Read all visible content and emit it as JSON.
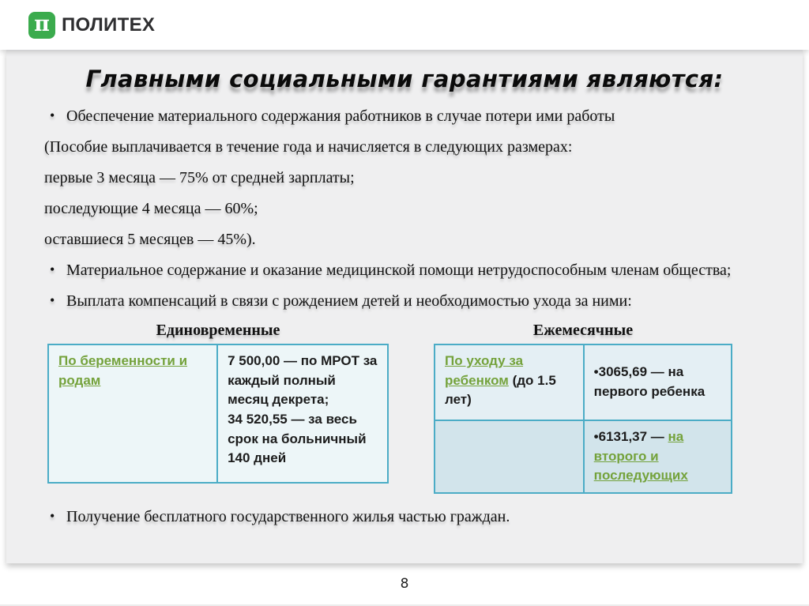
{
  "header": {
    "logo_icon": "π",
    "logo_text": "ПОЛИТЕХ"
  },
  "slide": {
    "title": "Главными социальными гарантиями  являются:",
    "bullets": [
      {
        "text": "Обеспечение материального содержания работников в случае потери ими работы"
      },
      {
        "text": "(Пособие выплачивается в течение года и начисляется в следующих размерах:"
      },
      {
        "text": "первые 3 месяца — 75% от средней зарплаты;"
      },
      {
        "text": "последующие 4 месяца — 60%;"
      },
      {
        "text": "оставшиеся 5 месяцев — 45%)."
      },
      {
        "text": "Материальное содержание и оказание медицинской помощи нетрудоспособным членам общества;"
      },
      {
        "text": "Выплата компенсаций в связи с рождением детей и необходимостью ухода за ними:"
      }
    ],
    "tables": {
      "lump_sum": {
        "caption": "Единовременные",
        "row": {
          "benefit_link": "По беременности и родам",
          "amount_line1": "7 500,00 — по МРОТ за каждый полный месяц декрета;",
          "amount_line2": "34 520,55 — за весь срок на больничный 140 дней"
        }
      },
      "monthly": {
        "caption": "Ежемесячные",
        "row1": {
          "benefit_link": "По уходу за ребенком",
          "benefit_suffix": " (до 1.5 лет)",
          "amount": "•3065,69 — на первого ребенка"
        },
        "row2": {
          "amount_prefix": "•6131,37 — ",
          "amount_link": "на второго и последующих"
        }
      }
    },
    "closing_bullet": "Получение бесплатного государственного жилья частью граждан."
  },
  "footer": {
    "page_number": "8"
  },
  "colors": {
    "logo_green": "#3bab4d",
    "accent_green": "#74a23b",
    "table_border": "#4bacc6",
    "slide_background": "#efeff0"
  }
}
